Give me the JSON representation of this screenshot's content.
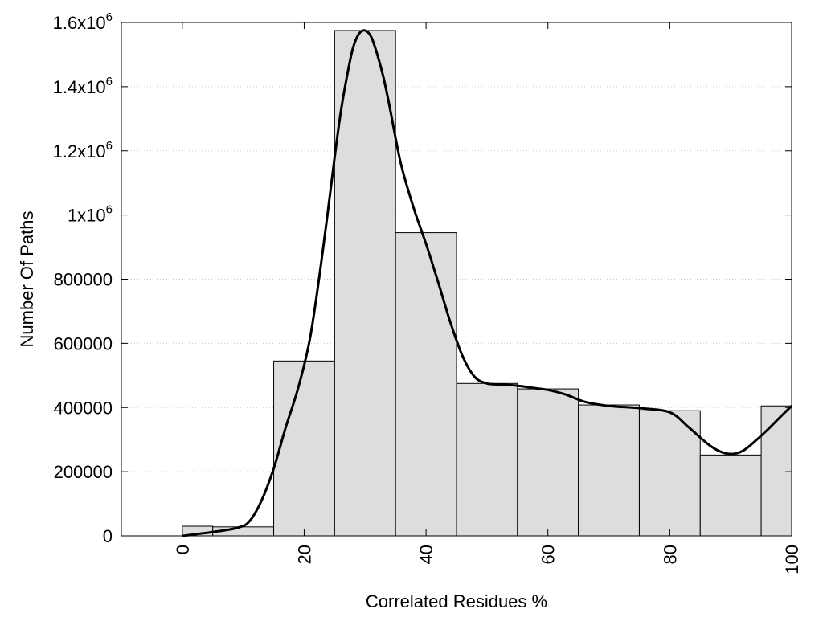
{
  "chart_data": {
    "type": "bar",
    "xlabel": "Correlated Residues %",
    "ylabel": "Number Of Paths",
    "xlim": [
      -10,
      100
    ],
    "ylim": [
      0,
      1600000
    ],
    "x_ticks": [
      0,
      20,
      40,
      60,
      80,
      100
    ],
    "x_tick_labels": [
      "0",
      "20",
      "40",
      "60",
      "80",
      "100"
    ],
    "y_ticks": [
      {
        "value": 0,
        "base": "0",
        "exp": ""
      },
      {
        "value": 200000,
        "base": "200000",
        "exp": ""
      },
      {
        "value": 400000,
        "base": "400000",
        "exp": ""
      },
      {
        "value": 600000,
        "base": "600000",
        "exp": ""
      },
      {
        "value": 800000,
        "base": "800000",
        "exp": ""
      },
      {
        "value": 1000000,
        "base": "1x10",
        "exp": "6"
      },
      {
        "value": 1200000,
        "base": "1.2x10",
        "exp": "6"
      },
      {
        "value": 1400000,
        "base": "1.4x10",
        "exp": "6"
      },
      {
        "value": 1600000,
        "base": "1.6x10",
        "exp": "6"
      }
    ],
    "grid": "horizontal dotted",
    "bar_color": "#dddddd",
    "bins": [
      {
        "start": 0,
        "end": 5,
        "value": 30000
      },
      {
        "start": 5,
        "end": 15,
        "value": 28000
      },
      {
        "start": 15,
        "end": 25,
        "value": 545000
      },
      {
        "start": 25,
        "end": 35,
        "value": 1575000
      },
      {
        "start": 35,
        "end": 45,
        "value": 945000
      },
      {
        "start": 45,
        "end": 55,
        "value": 475000
      },
      {
        "start": 55,
        "end": 65,
        "value": 458000
      },
      {
        "start": 65,
        "end": 75,
        "value": 408000
      },
      {
        "start": 75,
        "end": 85,
        "value": 390000
      },
      {
        "start": 85,
        "end": 95,
        "value": 252000
      },
      {
        "start": 95,
        "end": 100,
        "value": 405000
      }
    ],
    "smooth_curve": {
      "x": [
        0,
        5,
        9,
        11,
        13,
        15,
        17,
        19,
        21,
        23,
        25,
        26,
        27,
        28,
        29,
        30,
        31,
        32,
        33,
        34,
        35,
        36,
        38,
        40,
        42,
        44,
        46,
        48,
        50,
        52,
        55,
        58,
        60,
        63,
        66,
        70,
        75,
        80,
        83,
        86,
        88,
        90,
        92,
        94,
        96,
        98,
        100
      ],
      "y": [
        0,
        12000,
        25000,
        45000,
        110000,
        210000,
        340000,
        460000,
        620000,
        880000,
        1180000,
        1320000,
        1430000,
        1520000,
        1565000,
        1575000,
        1555000,
        1500000,
        1430000,
        1340000,
        1240000,
        1150000,
        1020000,
        910000,
        790000,
        665000,
        560000,
        495000,
        475000,
        472000,
        468000,
        460000,
        455000,
        440000,
        418000,
        405000,
        398000,
        385000,
        340000,
        290000,
        265000,
        255000,
        265000,
        295000,
        330000,
        368000,
        405000
      ]
    }
  }
}
